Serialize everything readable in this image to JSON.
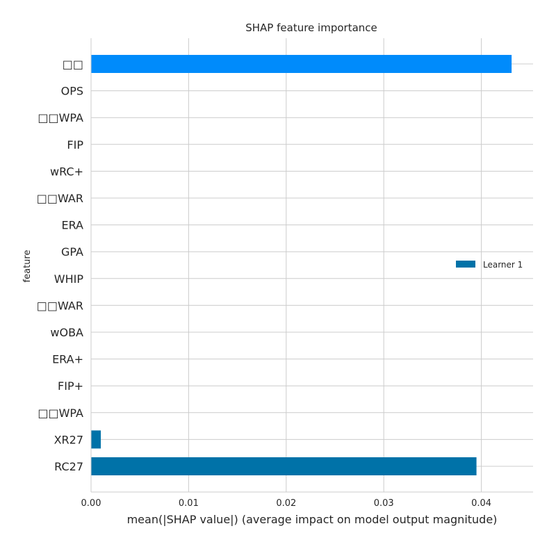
{
  "chart_data": {
    "type": "bar",
    "orientation": "horizontal",
    "title": "SHAP feature importance",
    "xlabel": "mean(|SHAP value|) (average impact on model output magnitude)",
    "ylabel": "feature",
    "xlim": [
      0,
      0.0453
    ],
    "x_ticks": [
      "0.00",
      "0.01",
      "0.02",
      "0.03",
      "0.04"
    ],
    "grid": true,
    "legend_position": "right",
    "categories": [
      "□□",
      "OPS",
      "□□WPA",
      "FIP",
      "wRC+",
      "□□WAR",
      "ERA",
      "GPA",
      "WHIP",
      "□□WAR",
      "wOBA",
      "ERA+",
      "FIP+",
      "□□WPA",
      "XR27",
      "RC27"
    ],
    "values": [
      0.0431,
      0,
      0,
      0,
      0,
      0,
      0,
      0,
      0,
      0,
      0,
      0,
      0,
      0,
      0.001,
      0.0395
    ],
    "bar_colors": [
      "#008bfb",
      "#0072a8",
      "#0072a8",
      "#0072a8",
      "#0072a8",
      "#0072a8",
      "#0072a8",
      "#0072a8",
      "#0072a8",
      "#0072a8",
      "#0072a8",
      "#0072a8",
      "#0072a8",
      "#0072a8",
      "#0072a8",
      "#0072a8"
    ],
    "series": [
      {
        "name": "Learner 1",
        "color": "#0072a8"
      }
    ]
  }
}
